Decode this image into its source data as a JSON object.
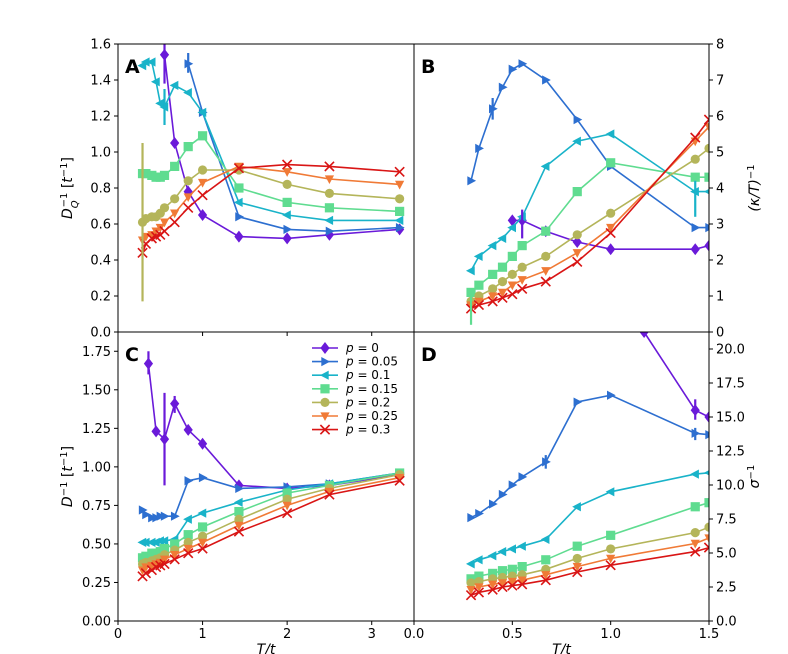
{
  "chart_data": [
    {
      "type": "line",
      "panel": "A",
      "title": "",
      "xlabel": "",
      "ylabel": "D_Q^{-1} [t^{-1}]",
      "ylabel_parts": {
        "main": "D",
        "sub": "Q",
        "sup": "−1",
        "unit": " [t",
        "unit_sup": "−1",
        "close": "]"
      },
      "xlim": [
        0,
        3.5
      ],
      "ylim": [
        0,
        1.6
      ],
      "yticks": [
        "0.0",
        "0.2",
        "0.4",
        "0.6",
        "0.8",
        "1.0",
        "1.2",
        "1.4",
        "1.6"
      ],
      "ytick_values": [
        0,
        0.2,
        0.4,
        0.6,
        0.8,
        1.0,
        1.2,
        1.4,
        1.6
      ],
      "xtick_values": [
        0,
        1,
        2,
        3
      ],
      "series": [
        {
          "name": "p = 0",
          "x": [
            0.55,
            0.67,
            0.83,
            1.0,
            1.43,
            2.0,
            2.5,
            3.33
          ],
          "y": [
            1.54,
            1.05,
            0.78,
            0.65,
            0.53,
            0.52,
            0.54,
            0.57
          ]
        },
        {
          "name": "p = 0.05",
          "x": [
            0.83,
            1.0,
            1.43,
            2.0,
            2.5,
            3.33
          ],
          "y": [
            1.49,
            1.22,
            0.64,
            0.57,
            0.56,
            0.58
          ]
        },
        {
          "name": "p = 0.1",
          "x": [
            0.29,
            0.33,
            0.4,
            0.45,
            0.5,
            0.55,
            0.67,
            0.83,
            1.0,
            1.43,
            2.0,
            2.5,
            3.33
          ],
          "y": [
            1.48,
            1.5,
            1.5,
            1.39,
            1.27,
            1.25,
            1.37,
            1.33,
            1.22,
            0.72,
            0.65,
            0.62,
            0.62
          ]
        },
        {
          "name": "p = 0.15",
          "x": [
            0.29,
            0.33,
            0.4,
            0.45,
            0.5,
            0.55,
            0.67,
            0.83,
            1.0,
            1.43,
            2.0,
            2.5,
            3.33
          ],
          "y": [
            0.88,
            0.88,
            0.87,
            0.86,
            0.86,
            0.87,
            0.92,
            1.03,
            1.09,
            0.8,
            0.72,
            0.69,
            0.67
          ]
        },
        {
          "name": "p = 0.2",
          "x": [
            0.29,
            0.33,
            0.4,
            0.45,
            0.5,
            0.55,
            0.67,
            0.83,
            1.0,
            1.43,
            2.0,
            2.5,
            3.33
          ],
          "y": [
            0.61,
            0.63,
            0.64,
            0.64,
            0.66,
            0.69,
            0.74,
            0.84,
            0.9,
            0.9,
            0.82,
            0.77,
            0.74
          ]
        },
        {
          "name": "p = 0.25",
          "x": [
            0.29,
            0.33,
            0.4,
            0.45,
            0.5,
            0.55,
            0.67,
            0.83,
            1.0,
            1.43,
            2.0,
            2.5,
            3.33
          ],
          "y": [
            0.51,
            0.53,
            0.54,
            0.56,
            0.58,
            0.61,
            0.66,
            0.75,
            0.83,
            0.92,
            0.89,
            0.85,
            0.82
          ]
        },
        {
          "name": "p = 0.3",
          "x": [
            0.29,
            0.33,
            0.4,
            0.45,
            0.5,
            0.55,
            0.67,
            0.83,
            1.0,
            1.43,
            2.0,
            2.5,
            3.33
          ],
          "y": [
            0.44,
            0.49,
            0.52,
            0.53,
            0.54,
            0.56,
            0.61,
            0.69,
            0.76,
            0.91,
            0.93,
            0.92,
            0.89
          ]
        }
      ],
      "errorbars": [
        {
          "series": "p = 0.2",
          "x": 0.29,
          "ylow": 0.17,
          "yhigh": 1.05
        },
        {
          "series": "p = 0",
          "x": 0.55,
          "ylow": 1.38,
          "yhigh": 1.6
        },
        {
          "series": "p = 0.05",
          "x": 0.83,
          "ylow": 1.44,
          "yhigh": 1.55
        },
        {
          "series": "p = 0.1",
          "x": 0.55,
          "ylow": 1.15,
          "yhigh": 1.35
        }
      ]
    },
    {
      "type": "line",
      "panel": "B",
      "xlabel": "",
      "ylabel": "(κ/T)^{-1}",
      "ylabel_parts": {
        "main": "(κ/T)",
        "sup": "−1"
      },
      "xlim": [
        0,
        1.5
      ],
      "ylim": [
        0,
        8
      ],
      "yticks": [
        "0",
        "1",
        "2",
        "3",
        "4",
        "5",
        "6",
        "7",
        "8"
      ],
      "ytick_values": [
        0,
        1,
        2,
        3,
        4,
        5,
        6,
        7,
        8
      ],
      "series": [
        {
          "name": "p = 0",
          "x": [
            0.5,
            0.55,
            0.67,
            0.83,
            1.0,
            1.43,
            1.5
          ],
          "y": [
            3.1,
            3.1,
            2.8,
            2.5,
            2.3,
            2.3,
            2.4
          ]
        },
        {
          "name": "p = 0.05",
          "x": [
            0.29,
            0.33,
            0.4,
            0.45,
            0.5,
            0.55,
            0.67,
            0.83,
            1.0,
            1.43,
            1.5
          ],
          "y": [
            4.2,
            5.1,
            6.2,
            6.8,
            7.3,
            7.45,
            7.0,
            5.9,
            4.6,
            2.9,
            2.9
          ]
        },
        {
          "name": "p = 0.1",
          "x": [
            0.29,
            0.33,
            0.4,
            0.45,
            0.5,
            0.55,
            0.67,
            0.83,
            1.0,
            1.43,
            1.5
          ],
          "y": [
            1.7,
            2.1,
            2.4,
            2.6,
            2.9,
            3.2,
            4.6,
            5.3,
            5.5,
            3.9,
            3.9
          ]
        },
        {
          "name": "p = 0.15",
          "x": [
            0.29,
            0.33,
            0.4,
            0.45,
            0.5,
            0.55,
            0.67,
            0.83,
            1.0,
            1.43,
            1.5
          ],
          "y": [
            1.1,
            1.3,
            1.6,
            1.8,
            2.1,
            2.4,
            2.8,
            3.9,
            4.7,
            4.3,
            4.3
          ]
        },
        {
          "name": "p = 0.2",
          "x": [
            0.29,
            0.33,
            0.4,
            0.45,
            0.5,
            0.55,
            0.67,
            0.83,
            1.0,
            1.43,
            1.5
          ],
          "y": [
            0.85,
            1.0,
            1.2,
            1.4,
            1.6,
            1.8,
            2.1,
            2.7,
            3.3,
            4.8,
            5.1
          ]
        },
        {
          "name": "p = 0.25",
          "x": [
            0.29,
            0.33,
            0.4,
            0.45,
            0.5,
            0.55,
            0.67,
            0.83,
            1.0,
            1.43,
            1.5
          ],
          "y": [
            0.75,
            0.85,
            1.0,
            1.1,
            1.3,
            1.45,
            1.7,
            2.2,
            2.9,
            5.3,
            5.7
          ]
        },
        {
          "name": "p = 0.3",
          "x": [
            0.29,
            0.33,
            0.4,
            0.45,
            0.5,
            0.55,
            0.67,
            0.83,
            1.0,
            1.43,
            1.5
          ],
          "y": [
            0.65,
            0.75,
            0.85,
            0.95,
            1.05,
            1.2,
            1.4,
            1.95,
            2.75,
            5.4,
            5.9
          ]
        }
      ],
      "errorbars": [
        {
          "series": "p = 0.15",
          "x": 0.29,
          "ylow": 0.2,
          "yhigh": 1.2
        },
        {
          "series": "p = 0.05",
          "x": 0.4,
          "ylow": 5.9,
          "yhigh": 6.5
        },
        {
          "series": "p = 0.1",
          "x": 1.43,
          "ylow": 3.2,
          "yhigh": 4.2
        },
        {
          "series": "p = 0",
          "x": 0.55,
          "ylow": 2.6,
          "yhigh": 3.4
        }
      ]
    },
    {
      "type": "line",
      "panel": "C",
      "xlabel": "T/t",
      "ylabel": "D^{-1} [t^{-1}]",
      "ylabel_parts": {
        "main": "D",
        "sup": "−1",
        "unit": " [t",
        "unit_sup": "−1",
        "close": "]"
      },
      "xlim": [
        0,
        3.5
      ],
      "ylim": [
        0,
        1.875
      ],
      "xticks": [
        "0",
        "1",
        "2",
        "3"
      ],
      "xtick_values": [
        0,
        1,
        2,
        3
      ],
      "yticks": [
        "0.00",
        "0.25",
        "0.50",
        "0.75",
        "1.00",
        "1.25",
        "1.50",
        "1.75"
      ],
      "ytick_values": [
        0,
        0.25,
        0.5,
        0.75,
        1.0,
        1.25,
        1.5,
        1.75
      ],
      "series": [
        {
          "name": "p = 0",
          "x": [
            0.36,
            0.45,
            0.55,
            0.67,
            0.83,
            1.0,
            1.43,
            2.0,
            2.5,
            3.33
          ],
          "y": [
            1.67,
            1.23,
            1.18,
            1.41,
            1.24,
            1.15,
            0.88,
            0.86,
            0.88,
            0.95
          ]
        },
        {
          "name": "p = 0.05",
          "x": [
            0.29,
            0.33,
            0.4,
            0.45,
            0.5,
            0.55,
            0.67,
            0.83,
            1.0,
            1.43,
            2.0,
            2.5,
            3.33
          ],
          "y": [
            0.72,
            0.69,
            0.67,
            0.67,
            0.68,
            0.68,
            0.68,
            0.91,
            0.93,
            0.86,
            0.87,
            0.89,
            0.96
          ]
        },
        {
          "name": "p = 0.1",
          "x": [
            0.29,
            0.33,
            0.4,
            0.45,
            0.5,
            0.55,
            0.67,
            0.83,
            1.0,
            1.43,
            2.0,
            2.5,
            3.33
          ],
          "y": [
            0.51,
            0.51,
            0.51,
            0.51,
            0.52,
            0.52,
            0.53,
            0.66,
            0.7,
            0.77,
            0.85,
            0.89,
            0.96
          ]
        },
        {
          "name": "p = 0.15",
          "x": [
            0.29,
            0.33,
            0.4,
            0.45,
            0.5,
            0.55,
            0.67,
            0.83,
            1.0,
            1.43,
            2.0,
            2.5,
            3.33
          ],
          "y": [
            0.41,
            0.42,
            0.44,
            0.44,
            0.45,
            0.47,
            0.5,
            0.56,
            0.61,
            0.71,
            0.83,
            0.88,
            0.96
          ]
        },
        {
          "name": "p = 0.2",
          "x": [
            0.29,
            0.33,
            0.4,
            0.45,
            0.5,
            0.55,
            0.67,
            0.83,
            1.0,
            1.43,
            2.0,
            2.5,
            3.33
          ],
          "y": [
            0.37,
            0.38,
            0.39,
            0.4,
            0.41,
            0.43,
            0.46,
            0.51,
            0.55,
            0.66,
            0.79,
            0.86,
            0.95
          ]
        },
        {
          "name": "p = 0.25",
          "x": [
            0.29,
            0.33,
            0.4,
            0.45,
            0.5,
            0.55,
            0.67,
            0.83,
            1.0,
            1.43,
            2.0,
            2.5,
            3.33
          ],
          "y": [
            0.33,
            0.35,
            0.36,
            0.37,
            0.38,
            0.4,
            0.43,
            0.47,
            0.51,
            0.62,
            0.75,
            0.84,
            0.93
          ]
        },
        {
          "name": "p = 0.3",
          "x": [
            0.29,
            0.33,
            0.4,
            0.45,
            0.5,
            0.55,
            0.67,
            0.83,
            1.0,
            1.43,
            2.0,
            2.5,
            3.33
          ],
          "y": [
            0.29,
            0.31,
            0.33,
            0.35,
            0.36,
            0.37,
            0.4,
            0.44,
            0.47,
            0.58,
            0.7,
            0.82,
            0.91
          ]
        }
      ],
      "errorbars": [
        {
          "series": "p = 0",
          "x": 0.55,
          "ylow": 0.88,
          "yhigh": 1.48
        },
        {
          "series": "p = 0",
          "x": 0.36,
          "ylow": 1.6,
          "yhigh": 1.75
        },
        {
          "series": "p = 0",
          "x": 0.67,
          "ylow": 1.35,
          "yhigh": 1.46
        }
      ],
      "legend": {
        "placement": "top-right",
        "entries": [
          "p = 0",
          "p = 0.05",
          "p = 0.1",
          "p = 0.15",
          "p = 0.2",
          "p = 0.25",
          "p = 0.3"
        ]
      }
    },
    {
      "type": "line",
      "panel": "D",
      "xlabel": "T/t",
      "ylabel": "σ^{-1}",
      "ylabel_parts": {
        "main": "σ",
        "sup": "−1"
      },
      "xlim": [
        0,
        1.5
      ],
      "ylim": [
        0,
        21.25
      ],
      "xticks": [
        "0.0",
        "0.5",
        "1.0",
        "1.5"
      ],
      "xtick_values": [
        0,
        0.5,
        1.0,
        1.5
      ],
      "yticks": [
        "0.0",
        "2.5",
        "5.0",
        "7.5",
        "10.0",
        "12.5",
        "15.0",
        "17.5",
        "20.0"
      ],
      "ytick_values": [
        0,
        2.5,
        5,
        7.5,
        10,
        12.5,
        15,
        17.5,
        20
      ],
      "series": [
        {
          "name": "p = 0",
          "x": [
            1.17,
            1.43,
            1.5
          ],
          "y": [
            21.25,
            15.5,
            15.0
          ]
        },
        {
          "name": "p = 0.05",
          "x": [
            0.29,
            0.33,
            0.4,
            0.45,
            0.5,
            0.55,
            0.67,
            0.83,
            1.0,
            1.43,
            1.5
          ],
          "y": [
            7.6,
            7.9,
            8.6,
            9.3,
            10.0,
            10.6,
            11.7,
            16.1,
            16.6,
            13.8,
            13.7
          ]
        },
        {
          "name": "p = 0.1",
          "x": [
            0.29,
            0.33,
            0.4,
            0.45,
            0.5,
            0.55,
            0.67,
            0.83,
            1.0,
            1.43,
            1.5
          ],
          "y": [
            4.2,
            4.5,
            4.8,
            5.1,
            5.3,
            5.5,
            6.0,
            8.4,
            9.5,
            10.8,
            10.9
          ]
        },
        {
          "name": "p = 0.15",
          "x": [
            0.29,
            0.33,
            0.4,
            0.45,
            0.5,
            0.55,
            0.67,
            0.83,
            1.0,
            1.43,
            1.5
          ],
          "y": [
            3.1,
            3.3,
            3.5,
            3.7,
            3.8,
            4.0,
            4.5,
            5.5,
            6.3,
            8.4,
            8.7
          ]
        },
        {
          "name": "p = 0.2",
          "x": [
            0.29,
            0.33,
            0.4,
            0.45,
            0.5,
            0.55,
            0.67,
            0.83,
            1.0,
            1.43,
            1.5
          ],
          "y": [
            2.8,
            2.9,
            3.1,
            3.2,
            3.3,
            3.4,
            3.8,
            4.6,
            5.3,
            6.5,
            6.9
          ]
        },
        {
          "name": "p = 0.25",
          "x": [
            0.29,
            0.33,
            0.4,
            0.45,
            0.5,
            0.55,
            0.67,
            0.83,
            1.0,
            1.43,
            1.5
          ],
          "y": [
            2.3,
            2.5,
            2.7,
            2.8,
            2.9,
            3.0,
            3.4,
            4.0,
            4.6,
            5.7,
            6.1
          ]
        },
        {
          "name": "p = 0.3",
          "x": [
            0.29,
            0.33,
            0.4,
            0.45,
            0.5,
            0.55,
            0.67,
            0.83,
            1.0,
            1.43,
            1.5
          ],
          "y": [
            1.9,
            2.1,
            2.3,
            2.5,
            2.6,
            2.7,
            3.0,
            3.6,
            4.1,
            5.1,
            5.4
          ]
        }
      ],
      "errorbars": [
        {
          "series": "p = 0",
          "x": 1.43,
          "ylow": 14.8,
          "yhigh": 16.3
        },
        {
          "series": "p = 0.05",
          "x": 1.43,
          "ylow": 13.3,
          "yhigh": 14.2
        },
        {
          "series": "p = 0.05",
          "x": 0.67,
          "ylow": 11.2,
          "yhigh": 12.2
        }
      ]
    }
  ],
  "series_styles": [
    {
      "name": "p = 0",
      "color": "#6a1ad9",
      "marker": "diamond"
    },
    {
      "name": "p = 0.05",
      "color": "#2d6fd0",
      "marker": "triangle-right"
    },
    {
      "name": "p = 0.1",
      "color": "#19b3c9",
      "marker": "triangle-left"
    },
    {
      "name": "p = 0.15",
      "color": "#5fdc90",
      "marker": "square"
    },
    {
      "name": "p = 0.2",
      "color": "#b4b55a",
      "marker": "circle"
    },
    {
      "name": "p = 0.25",
      "color": "#f07a36",
      "marker": "triangle-down"
    },
    {
      "name": "p = 0.3",
      "color": "#d91515",
      "marker": "x"
    }
  ]
}
